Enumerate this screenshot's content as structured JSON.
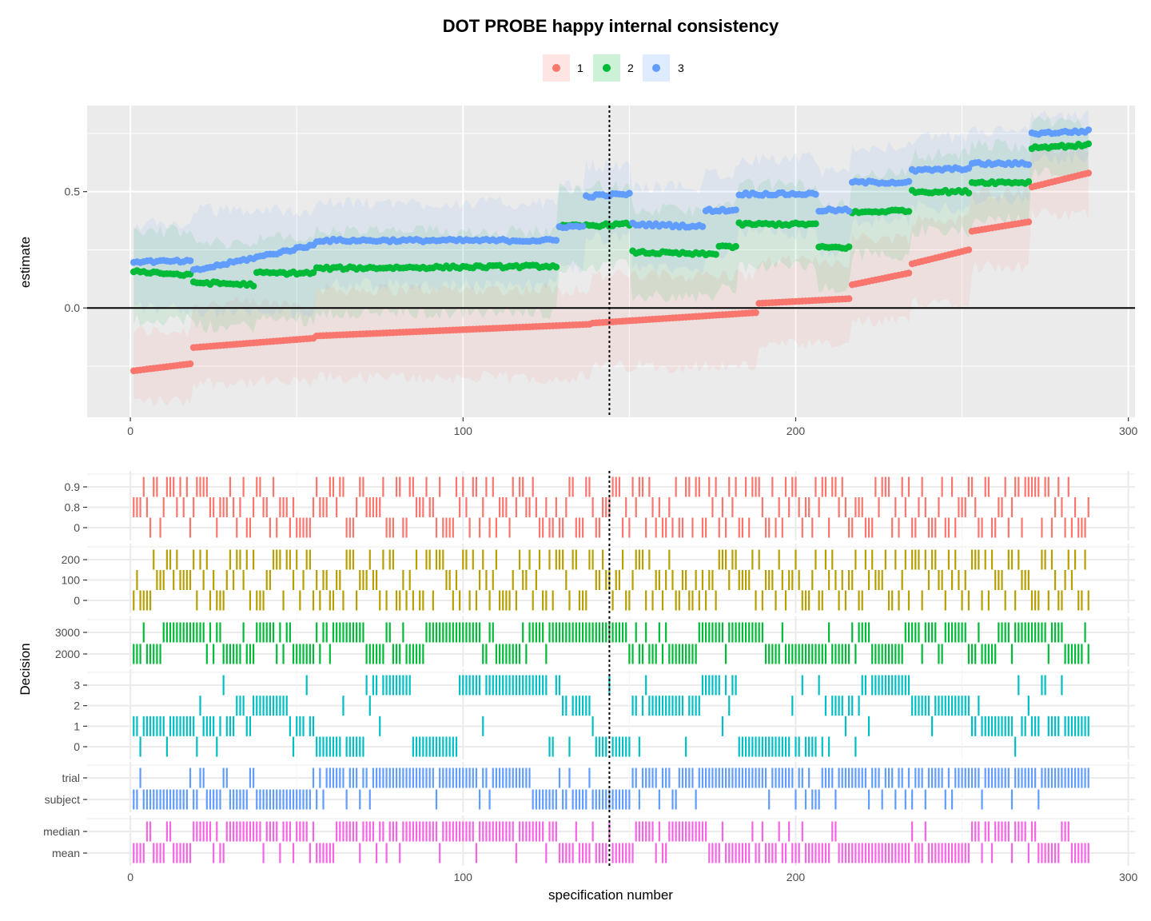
{
  "chart_data": [
    {
      "type": "scatter",
      "title": "DOT PROBE happy internal consistency",
      "xlabel": "",
      "ylabel": "estimate",
      "xlim": [
        -13,
        302
      ],
      "ylim": [
        -0.47,
        0.87
      ],
      "x_ticks": [
        "0",
        "100",
        "200",
        "300"
      ],
      "x_tick_values": [
        0,
        100,
        200,
        300
      ],
      "y_ticks": [
        "0.0",
        "0.5"
      ],
      "y_tick_values": [
        0.0,
        0.5
      ],
      "grid": true,
      "hline": 0,
      "vline": 144,
      "legend": {
        "position": "top",
        "entries": [
          "1",
          "2",
          "3"
        ]
      },
      "colors": {
        "1": "#F8766D",
        "2": "#00BA38",
        "3": "#619CFF"
      },
      "n_points": 288,
      "series": [
        {
          "name": "1",
          "color": "#F8766D",
          "segments": [
            {
              "x_from": 1,
              "x_to": 18,
              "y_from": -0.27,
              "y_to": -0.24,
              "ci_low": -0.4,
              "ci_high": -0.1
            },
            {
              "x_from": 19,
              "x_to": 55,
              "y_from": -0.17,
              "y_to": -0.13,
              "ci_low": -0.32,
              "ci_high": 0.02
            },
            {
              "x_from": 56,
              "x_to": 138,
              "y_from": -0.12,
              "y_to": -0.07,
              "ci_low": -0.3,
              "ci_high": 0.08
            },
            {
              "x_from": 139,
              "x_to": 188,
              "y_from": -0.065,
              "y_to": -0.02,
              "ci_low": -0.25,
              "ci_high": 0.14
            },
            {
              "x_from": 189,
              "x_to": 216,
              "y_from": 0.02,
              "y_to": 0.04,
              "ci_low": -0.16,
              "ci_high": 0.2
            },
            {
              "x_from": 217,
              "x_to": 234,
              "y_from": 0.1,
              "y_to": 0.15,
              "ci_low": -0.06,
              "ci_high": 0.3
            },
            {
              "x_from": 235,
              "x_to": 252,
              "y_from": 0.19,
              "y_to": 0.25,
              "ci_low": 0.03,
              "ci_high": 0.38
            },
            {
              "x_from": 253,
              "x_to": 270,
              "y_from": 0.33,
              "y_to": 0.37,
              "ci_low": 0.18,
              "ci_high": 0.5
            },
            {
              "x_from": 271,
              "x_to": 288,
              "y_from": 0.52,
              "y_to": 0.58,
              "ci_low": 0.4,
              "ci_high": 0.68
            }
          ]
        },
        {
          "name": "2",
          "color": "#00BA38",
          "segments": [
            {
              "x_from": 1,
              "x_to": 18,
              "y_from": 0.16,
              "y_to": 0.14,
              "ci_low": -0.05,
              "ci_high": 0.33
            },
            {
              "x_from": 19,
              "x_to": 37,
              "y_from": 0.11,
              "y_to": 0.1,
              "ci_low": -0.08,
              "ci_high": 0.28
            },
            {
              "x_from": 38,
              "x_to": 55,
              "y_from": 0.15,
              "y_to": 0.15,
              "ci_low": -0.05,
              "ci_high": 0.3
            },
            {
              "x_from": 56,
              "x_to": 128,
              "y_from": 0.17,
              "y_to": 0.18,
              "ci_low": -0.02,
              "ci_high": 0.33
            },
            {
              "x_from": 129,
              "x_to": 150,
              "y_from": 0.35,
              "y_to": 0.36,
              "ci_low": 0.18,
              "ci_high": 0.52
            },
            {
              "x_from": 151,
              "x_to": 176,
              "y_from": 0.24,
              "y_to": 0.23,
              "ci_low": 0.05,
              "ci_high": 0.42
            },
            {
              "x_from": 177,
              "x_to": 182,
              "y_from": 0.27,
              "y_to": 0.26,
              "ci_low": 0.08,
              "ci_high": 0.44
            },
            {
              "x_from": 183,
              "x_to": 206,
              "y_from": 0.36,
              "y_to": 0.36,
              "ci_low": 0.18,
              "ci_high": 0.53
            },
            {
              "x_from": 207,
              "x_to": 216,
              "y_from": 0.26,
              "y_to": 0.26,
              "ci_low": 0.08,
              "ci_high": 0.44
            },
            {
              "x_from": 217,
              "x_to": 234,
              "y_from": 0.41,
              "y_to": 0.42,
              "ci_low": 0.23,
              "ci_high": 0.58
            },
            {
              "x_from": 235,
              "x_to": 252,
              "y_from": 0.5,
              "y_to": 0.5,
              "ci_low": 0.33,
              "ci_high": 0.66
            },
            {
              "x_from": 253,
              "x_to": 270,
              "y_from": 0.54,
              "y_to": 0.54,
              "ci_low": 0.38,
              "ci_high": 0.7
            },
            {
              "x_from": 271,
              "x_to": 288,
              "y_from": 0.69,
              "y_to": 0.7,
              "ci_low": 0.58,
              "ci_high": 0.8
            }
          ]
        },
        {
          "name": "3",
          "color": "#619CFF",
          "segments": [
            {
              "x_from": 1,
              "x_to": 18,
              "y_from": 0.2,
              "y_to": 0.2,
              "ci_low": 0.0,
              "ci_high": 0.36
            },
            {
              "x_from": 19,
              "x_to": 55,
              "y_from": 0.16,
              "y_to": 0.27,
              "ci_low": -0.02,
              "ci_high": 0.42
            },
            {
              "x_from": 56,
              "x_to": 128,
              "y_from": 0.29,
              "y_to": 0.29,
              "ci_low": 0.1,
              "ci_high": 0.45
            },
            {
              "x_from": 129,
              "x_to": 136,
              "y_from": 0.35,
              "y_to": 0.35,
              "ci_low": 0.17,
              "ci_high": 0.52
            },
            {
              "x_from": 137,
              "x_to": 150,
              "y_from": 0.48,
              "y_to": 0.49,
              "ci_low": 0.3,
              "ci_high": 0.61
            },
            {
              "x_from": 151,
              "x_to": 172,
              "y_from": 0.36,
              "y_to": 0.35,
              "ci_low": 0.17,
              "ci_high": 0.52
            },
            {
              "x_from": 173,
              "x_to": 182,
              "y_from": 0.42,
              "y_to": 0.42,
              "ci_low": 0.24,
              "ci_high": 0.58
            },
            {
              "x_from": 183,
              "x_to": 206,
              "y_from": 0.49,
              "y_to": 0.49,
              "ci_low": 0.32,
              "ci_high": 0.64
            },
            {
              "x_from": 207,
              "x_to": 216,
              "y_from": 0.42,
              "y_to": 0.42,
              "ci_low": 0.24,
              "ci_high": 0.58
            },
            {
              "x_from": 217,
              "x_to": 234,
              "y_from": 0.54,
              "y_to": 0.54,
              "ci_low": 0.37,
              "ci_high": 0.69
            },
            {
              "x_from": 235,
              "x_to": 252,
              "y_from": 0.59,
              "y_to": 0.6,
              "ci_low": 0.43,
              "ci_high": 0.73
            },
            {
              "x_from": 253,
              "x_to": 270,
              "y_from": 0.62,
              "y_to": 0.62,
              "ci_low": 0.47,
              "ci_high": 0.76
            },
            {
              "x_from": 271,
              "x_to": 288,
              "y_from": 0.75,
              "y_to": 0.76,
              "ci_low": 0.64,
              "ci_high": 0.82
            }
          ]
        }
      ]
    },
    {
      "type": "heatmap",
      "title": "",
      "xlabel": "specification number",
      "ylabel": "Decision",
      "xlim": [
        -13,
        302
      ],
      "x_ticks": [
        "0",
        "100",
        "200",
        "300"
      ],
      "x_tick_values": [
        0,
        100,
        200,
        300
      ],
      "vline": 144,
      "n_specifications": 288,
      "decisions": [
        {
          "levels": [
            "0.9",
            "0.8",
            "0"
          ],
          "color": "#F8766D",
          "pattern": [
            0,
            1,
            2,
            2,
            0,
            1,
            1,
            2,
            0,
            1
          ],
          "block_lengths": [
            1
          ]
        },
        {
          "levels": [
            "200",
            "100",
            "0"
          ],
          "color": "#B79F00",
          "pattern": [
            0,
            0,
            1,
            2,
            1,
            0,
            2,
            1,
            0,
            2,
            2,
            1
          ],
          "block_lengths": [
            1
          ]
        },
        {
          "levels": [
            "3000",
            "2000"
          ],
          "color": "#00BA38",
          "runs": [
            [
              1,
              9,
              "2000"
            ],
            [
              10,
              27,
              "3000"
            ],
            [
              28,
              37,
              "2000"
            ],
            [
              38,
              48,
              "3000"
            ],
            [
              49,
              55,
              "2000"
            ],
            [
              56,
              70,
              "3000"
            ],
            [
              71,
              86,
              "2000"
            ],
            [
              87,
              110,
              "3000"
            ],
            [
              111,
              120,
              "2000"
            ],
            [
              121,
              138,
              "3000"
            ],
            [
              139,
              150,
              "3000"
            ],
            [
              151,
              170,
              "2000"
            ],
            [
              171,
              189,
              "3000"
            ],
            [
              190,
              216,
              "2000"
            ],
            [
              217,
              222,
              "3000"
            ],
            [
              223,
              232,
              "2000"
            ],
            [
              233,
              252,
              "3000"
            ],
            [
              253,
              260,
              "2000"
            ],
            [
              261,
              270,
              "3000"
            ],
            [
              271,
              279,
              "3000"
            ],
            [
              280,
              288,
              "2000"
            ]
          ]
        },
        {
          "levels": [
            "3",
            "2",
            "1",
            "0"
          ],
          "color": "#00BFC4",
          "runs": [
            [
              1,
              31,
              "1"
            ],
            [
              32,
              47,
              "2"
            ],
            [
              48,
              55,
              "1"
            ],
            [
              56,
              70,
              "0"
            ],
            [
              71,
              84,
              "3"
            ],
            [
              85,
              98,
              "0"
            ],
            [
              99,
              128,
              "3"
            ],
            [
              129,
              137,
              "2"
            ],
            [
              138,
              150,
              "0"
            ],
            [
              151,
              172,
              "2"
            ],
            [
              173,
              182,
              "3"
            ],
            [
              183,
              210,
              "0"
            ],
            [
              211,
              219,
              "2"
            ],
            [
              220,
              234,
              "3"
            ],
            [
              235,
              252,
              "2"
            ],
            [
              253,
              288,
              "1"
            ]
          ]
        },
        {
          "levels": [
            "trial",
            "subject"
          ],
          "color": "#619CFF",
          "runs": [
            [
              1,
              56,
              "subject"
            ],
            [
              57,
              120,
              "trial"
            ],
            [
              121,
              150,
              "subject"
            ],
            [
              151,
              216,
              "trial"
            ],
            [
              217,
              288,
              "trial"
            ]
          ]
        },
        {
          "levels": [
            "median",
            "mean"
          ],
          "color": "#F564E3",
          "runs": [
            [
              1,
              18,
              "mean"
            ],
            [
              19,
              55,
              "median"
            ],
            [
              56,
              61,
              "mean"
            ],
            [
              62,
              128,
              "median"
            ],
            [
              129,
              150,
              "mean"
            ],
            [
              151,
              173,
              "median"
            ],
            [
              174,
              252,
              "mean"
            ],
            [
              253,
              270,
              "median"
            ],
            [
              271,
              288,
              "mean"
            ]
          ]
        }
      ]
    }
  ]
}
